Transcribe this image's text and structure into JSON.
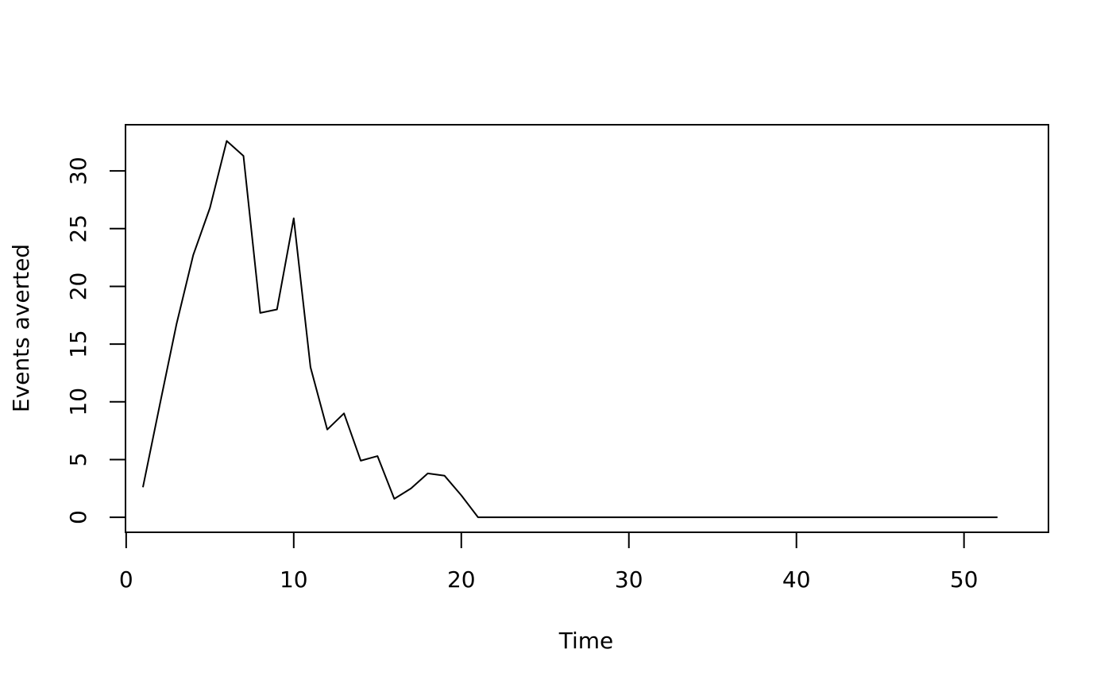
{
  "chart_data": {
    "type": "line",
    "title": "",
    "xlabel": "Time",
    "ylabel": "Events averted",
    "xlim": [
      -0.04,
      55.04
    ],
    "ylim": [
      -1.3,
      34.0
    ],
    "xticks": [
      0,
      10,
      20,
      30,
      40,
      50
    ],
    "yticks": [
      0,
      5,
      10,
      15,
      20,
      25,
      30
    ],
    "grid": false,
    "legend": "none",
    "line_color": "#000000",
    "series": [
      {
        "x": [
          1,
          2,
          3,
          4,
          5,
          6,
          7,
          8,
          9,
          10,
          11,
          12,
          13,
          14,
          15,
          16,
          17,
          18,
          19,
          20,
          21,
          22,
          23,
          24,
          25,
          26,
          27,
          28,
          29,
          30,
          31,
          32,
          33,
          34,
          35,
          36,
          37,
          38,
          39,
          40,
          41,
          42,
          43,
          44,
          45,
          46,
          47,
          48,
          49,
          50,
          51,
          52
        ],
        "values": [
          2.6,
          9.7,
          16.7,
          22.7,
          26.8,
          32.6,
          31.3,
          17.7,
          18.0,
          25.9,
          13.0,
          7.6,
          9.0,
          4.9,
          5.3,
          1.6,
          2.5,
          3.8,
          3.6,
          1.9,
          0,
          0,
          0,
          0,
          0,
          0,
          0,
          0,
          0,
          0,
          0,
          0,
          0,
          0,
          0,
          0,
          0,
          0,
          0,
          0,
          0,
          0,
          0,
          0,
          0,
          0,
          0,
          0,
          0,
          0,
          0,
          0
        ]
      }
    ]
  }
}
